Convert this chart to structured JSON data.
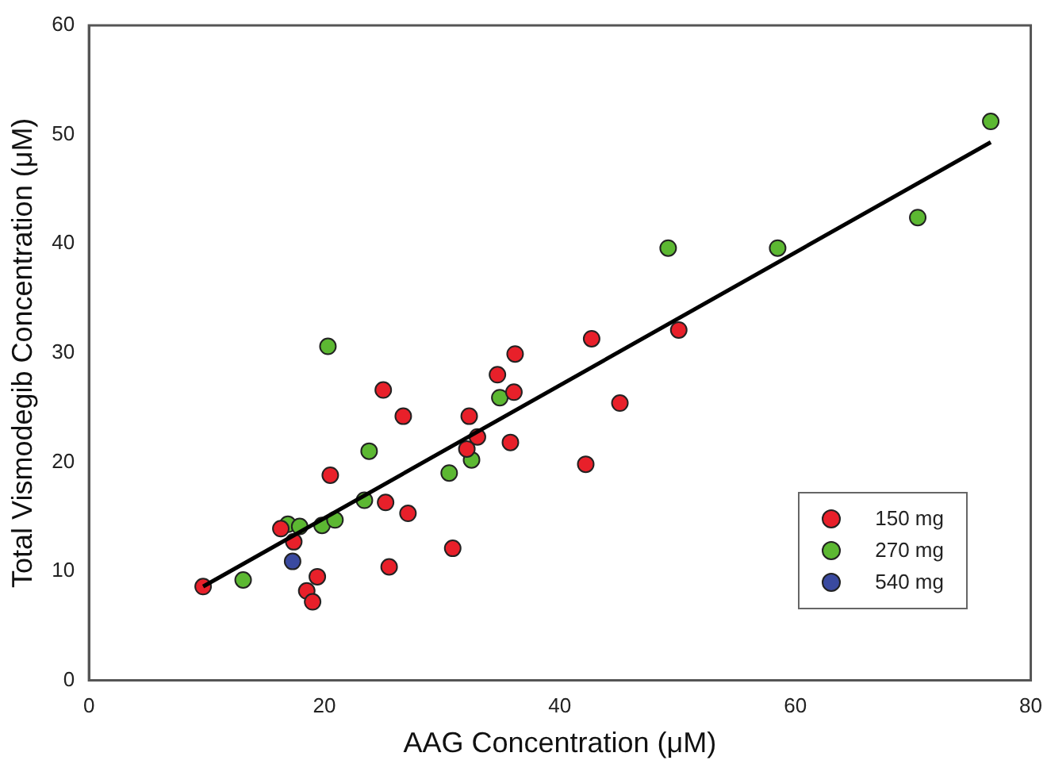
{
  "chart_data": {
    "type": "scatter",
    "xlabel": "AAG Concentration (μM)",
    "ylabel": "Total Vismodegib Concentration (μM)",
    "xlim": [
      0,
      80
    ],
    "xticks": [
      0,
      20,
      40,
      60,
      80
    ],
    "ylim": [
      0,
      60
    ],
    "yticks": [
      0,
      10,
      20,
      30,
      40,
      50,
      60
    ],
    "grid": false,
    "legend": "bottom right",
    "marker": "circle",
    "series": [
      {
        "name": "150 mg",
        "color": "#e8202a",
        "x": [
          9.7,
          16.3,
          17.4,
          18.5,
          19,
          19.4,
          20.5,
          25,
          25.2,
          25.5,
          26.7,
          27.1,
          30.9,
          32.1,
          32.3,
          33,
          34.7,
          35.8,
          36.1,
          36.2,
          42.2,
          42.7,
          45.1,
          50.1
        ],
        "values": [
          8.6,
          13.9,
          12.7,
          8.2,
          7.2,
          9.5,
          18.8,
          26.6,
          16.3,
          10.4,
          24.2,
          15.3,
          12.1,
          21.2,
          24.2,
          22.3,
          28,
          21.8,
          26.4,
          29.9,
          19.8,
          31.3,
          25.4,
          32.1
        ]
      },
      {
        "name": "270 mg",
        "color": "#5cb832",
        "x": [
          13.1,
          16.9,
          17.9,
          19.8,
          20.9,
          20.3,
          23.4,
          23.8,
          30.6,
          32.5,
          34.9,
          49.2,
          58.5,
          70.4,
          76.6
        ],
        "values": [
          9.2,
          14.3,
          14.1,
          14.2,
          14.7,
          30.6,
          16.5,
          21,
          19,
          20.2,
          25.9,
          39.6,
          39.6,
          42.4,
          51.2
        ]
      },
      {
        "name": "540 mg",
        "color": "#3a4aa0",
        "x": [
          17.3
        ],
        "values": [
          10.9
        ]
      },
      {
        "type": "line",
        "color": "#000000",
        "marker": "none",
        "x": [
          9.7,
          76.6
        ],
        "values": [
          8.6,
          49.3
        ]
      }
    ]
  }
}
